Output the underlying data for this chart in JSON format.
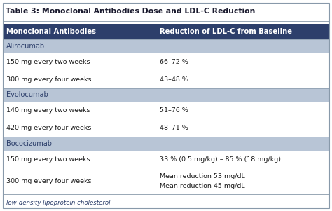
{
  "title": "Table 3: Monoclonal Antibodies Dose and LDL-C Reduction",
  "header_col1": "Monoclonal Antibodies",
  "header_col2": "Reduction of LDL-C from Baseline",
  "header_bg": "#2d3f6b",
  "header_fg": "#ffffff",
  "section_bg": "#b8c5d6",
  "section_fg": "#2d3f6b",
  "row_bg": "#ffffff",
  "fig_bg": "#ffffff",
  "title_fg": "#1a1a2e",
  "border_color": "#8899aa",
  "footer_text": "low-density lipoprotein cholesterol",
  "footer_color": "#2d3f6b",
  "col_split": 0.47,
  "sections": [
    {
      "name": "Alirocumab",
      "rows": [
        [
          "150 mg every two weeks",
          "66–72 %"
        ],
        [
          "300 mg every four weeks",
          "43–48 %"
        ]
      ]
    },
    {
      "name": "Evolocumab",
      "rows": [
        [
          "140 mg every two weeks",
          "51–76 %"
        ],
        [
          "420 mg every four weeks",
          "48–71 %"
        ]
      ]
    },
    {
      "name": "Bococizumab",
      "rows": [
        [
          "150 mg every two weeks",
          "33 % (0.5 mg/kg) – 85 % (18 mg/kg)"
        ],
        [
          "300 mg every four weeks",
          "Mean reduction 53 mg/dL\nMean reduction 45 mg/dL"
        ]
      ]
    }
  ]
}
